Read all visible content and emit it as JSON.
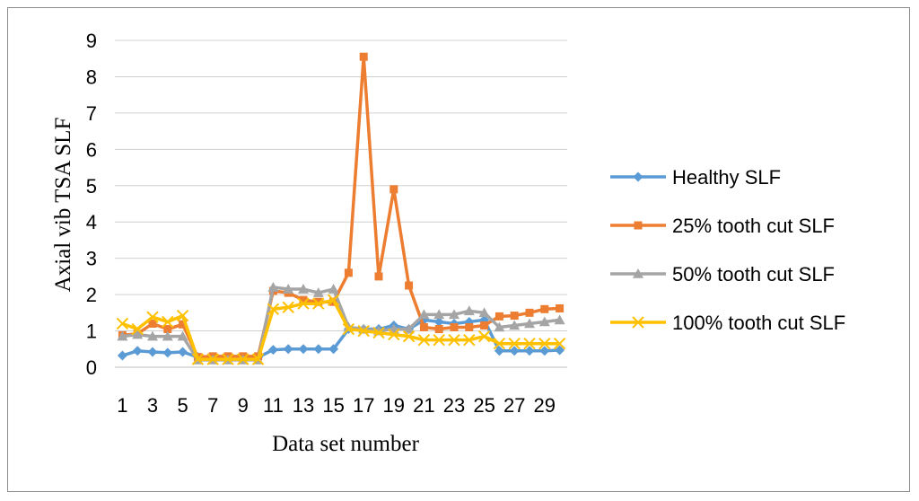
{
  "chart_data": {
    "type": "line",
    "title": "",
    "xlabel": "Data set number",
    "ylabel": "Axial vib TSA SLF",
    "ylim": [
      0,
      9
    ],
    "yticks": [
      "0",
      "1",
      "2",
      "3",
      "4",
      "5",
      "6",
      "7",
      "8",
      "9"
    ],
    "x": [
      1,
      2,
      3,
      4,
      5,
      6,
      7,
      8,
      9,
      10,
      11,
      12,
      13,
      14,
      15,
      16,
      17,
      18,
      19,
      20,
      21,
      22,
      23,
      24,
      25,
      26,
      27,
      28,
      29,
      30
    ],
    "xtick_labels": [
      "1",
      "3",
      "5",
      "7",
      "9",
      "11",
      "13",
      "15",
      "17",
      "19",
      "21",
      "23",
      "25",
      "27",
      "29"
    ],
    "grid": "horizontal",
    "legend_position": "right",
    "series": [
      {
        "name": "Healthy SLF",
        "color": "#5b9bd5",
        "marker": "diamond",
        "values": [
          0.32,
          0.45,
          0.42,
          0.4,
          0.42,
          0.28,
          0.28,
          0.28,
          0.27,
          0.27,
          0.48,
          0.5,
          0.5,
          0.5,
          0.5,
          1.05,
          1.05,
          1.05,
          1.15,
          1.05,
          1.3,
          1.25,
          1.2,
          1.25,
          1.3,
          0.45,
          0.45,
          0.45,
          0.45,
          0.47
        ]
      },
      {
        "name": "25% tooth cut SLF",
        "color": "#ed7d31",
        "marker": "square",
        "values": [
          0.88,
          0.92,
          1.2,
          1.05,
          1.18,
          0.28,
          0.3,
          0.3,
          0.3,
          0.3,
          2.1,
          2.05,
          1.85,
          1.8,
          1.8,
          2.6,
          8.55,
          2.5,
          4.9,
          2.25,
          1.1,
          1.05,
          1.1,
          1.1,
          1.15,
          1.4,
          1.42,
          1.5,
          1.6,
          1.62
        ]
      },
      {
        "name": "50% tooth cut SLF",
        "color": "#a5a5a5",
        "marker": "triangle",
        "values": [
          0.85,
          0.9,
          0.85,
          0.85,
          0.85,
          0.2,
          0.2,
          0.2,
          0.2,
          0.2,
          2.2,
          2.15,
          2.15,
          2.05,
          2.15,
          1.1,
          1.05,
          1.0,
          1.05,
          1.05,
          1.45,
          1.45,
          1.45,
          1.55,
          1.5,
          1.1,
          1.15,
          1.2,
          1.25,
          1.3
        ]
      },
      {
        "name": "100% tooth cut SLF",
        "color": "#ffc000",
        "marker": "x",
        "values": [
          1.2,
          1.05,
          1.38,
          1.25,
          1.42,
          0.22,
          0.22,
          0.22,
          0.22,
          0.22,
          1.6,
          1.65,
          1.75,
          1.75,
          1.85,
          1.05,
          1.0,
          0.95,
          0.9,
          0.85,
          0.75,
          0.75,
          0.75,
          0.75,
          0.85,
          0.65,
          0.65,
          0.65,
          0.65,
          0.65
        ]
      }
    ]
  }
}
